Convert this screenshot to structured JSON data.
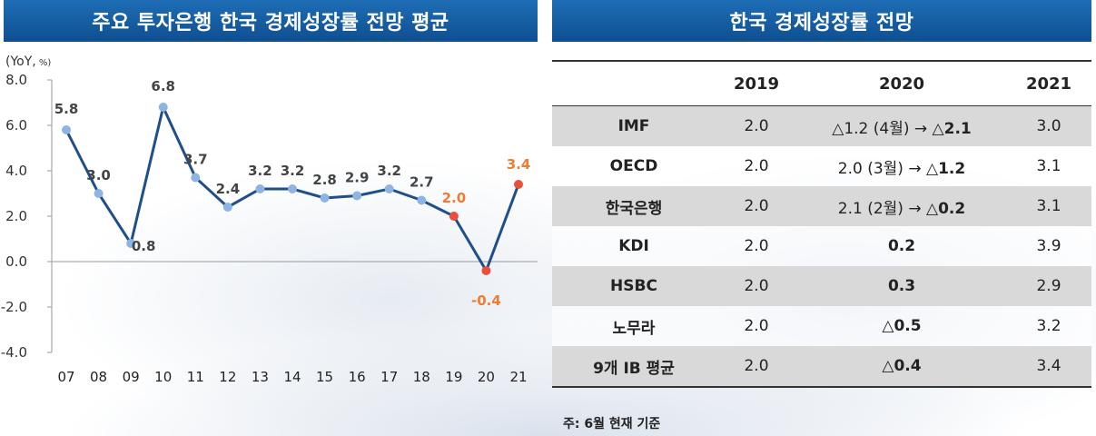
{
  "left_panel": {
    "title": "주요 투자은행 한국 경제성장률 전망 평균",
    "unit_main": "(YoY,",
    "unit_small": " %)"
  },
  "right_panel": {
    "title": "한국 경제성장률 전망"
  },
  "colors": {
    "banner": "#1565b0",
    "series": "#8eb4e3",
    "highlight": "#e8503a",
    "highlight_label": "#ed7d31",
    "label": "#444444"
  },
  "chart_data": {
    "type": "line",
    "title": "주요 투자은행 한국 경제성장률 전망 평균",
    "ylabel": "(YoY, %)",
    "ylim": [
      -4.0,
      8.0
    ],
    "yticks": [
      "8.0",
      "6.0",
      "4.0",
      "2.0",
      "0.0",
      "-2.0",
      "-4.0"
    ],
    "x": [
      "07",
      "08",
      "09",
      "10",
      "11",
      "12",
      "13",
      "14",
      "15",
      "16",
      "17",
      "18",
      "19",
      "20",
      "21"
    ],
    "values": [
      5.8,
      3.0,
      0.8,
      6.8,
      3.7,
      2.4,
      3.2,
      3.2,
      2.8,
      2.9,
      3.2,
      2.7,
      2.0,
      -0.4,
      3.4
    ],
    "labels": [
      "5.8",
      "3.0",
      "0.8",
      "6.8",
      "3.7",
      "2.4",
      "3.2",
      "3.2",
      "2.8",
      "2.9",
      "3.2",
      "2.7",
      "2.0",
      "-0.4",
      "3.4"
    ],
    "highlighted": [
      "19",
      "20",
      "21"
    ],
    "grid": false
  },
  "table": {
    "headers": [
      "",
      "2019",
      "2020",
      "2021"
    ],
    "rows": [
      {
        "inst": "IMF",
        "y2019": "2.0",
        "y2020_pre": "△1.2 (4월) → ",
        "y2020_bold": "△2.1",
        "y2021": "3.0"
      },
      {
        "inst": "OECD",
        "y2019": "2.0",
        "y2020_pre": "2.0 (3월) → ",
        "y2020_bold": "△1.2",
        "y2021": "3.1"
      },
      {
        "inst": "한국은행",
        "y2019": "2.0",
        "y2020_pre": "2.1 (2월) → ",
        "y2020_bold": "△0.2",
        "y2021": "3.1"
      },
      {
        "inst": "KDI",
        "y2019": "2.0",
        "y2020_pre": "",
        "y2020_bold": "0.2",
        "y2021": "3.9"
      },
      {
        "inst": "HSBC",
        "y2019": "2.0",
        "y2020_pre": "",
        "y2020_bold": "0.3",
        "y2021": "2.9"
      },
      {
        "inst": "노무라",
        "y2019": "2.0",
        "y2020_pre": "",
        "y2020_bold": "△0.5",
        "y2021": "3.2"
      },
      {
        "inst": "9개 IB 평균",
        "y2019": "2.0",
        "y2020_pre": "",
        "y2020_bold": "△0.4",
        "y2021": "3.4"
      }
    ]
  },
  "note": "주: 6월 현재 기준"
}
